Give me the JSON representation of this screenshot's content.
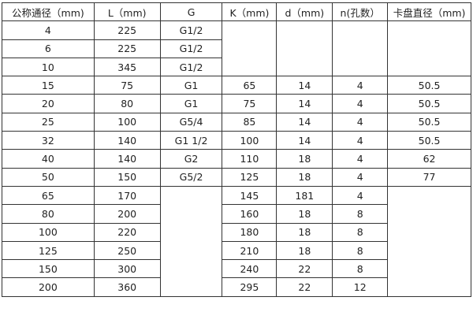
{
  "table": {
    "headers": [
      "公称通径（mm)",
      "L（mm)",
      "G",
      "K（mm)",
      "d（mm)",
      "n(孔数）",
      "卡盘直径（mm)"
    ],
    "rows": [
      [
        "4",
        "225",
        "G1/2",
        "",
        "",
        "",
        ""
      ],
      [
        "6",
        "225",
        "G1/2",
        null,
        null,
        null,
        null
      ],
      [
        "10",
        "345",
        "G1/2",
        null,
        null,
        null,
        null
      ],
      [
        "15",
        "75",
        "G1",
        "65",
        "14",
        "4",
        "50.5"
      ],
      [
        "20",
        "80",
        "G1",
        "75",
        "14",
        "4",
        "50.5"
      ],
      [
        "25",
        "100",
        "G5/4",
        "85",
        "14",
        "4",
        "50.5"
      ],
      [
        "32",
        "140",
        "G1  1/2",
        "100",
        "14",
        "4",
        "50.5"
      ],
      [
        "40",
        "140",
        "G2",
        "110",
        "18",
        "4",
        "62"
      ],
      [
        "50",
        "150",
        "G5/2",
        "125",
        "18",
        "4",
        "77"
      ],
      [
        "65",
        "170",
        "",
        "145",
        "181",
        "4",
        ""
      ],
      [
        "80",
        "200",
        null,
        "160",
        "18",
        "8",
        null
      ],
      [
        "100",
        "220",
        null,
        "180",
        "18",
        "8",
        null
      ],
      [
        "125",
        "250",
        null,
        "210",
        "18",
        "8",
        null
      ],
      [
        "150",
        "300",
        null,
        "240",
        "22",
        "8",
        null
      ],
      [
        "200",
        "360",
        null,
        "295",
        "22",
        "12",
        null
      ]
    ]
  }
}
